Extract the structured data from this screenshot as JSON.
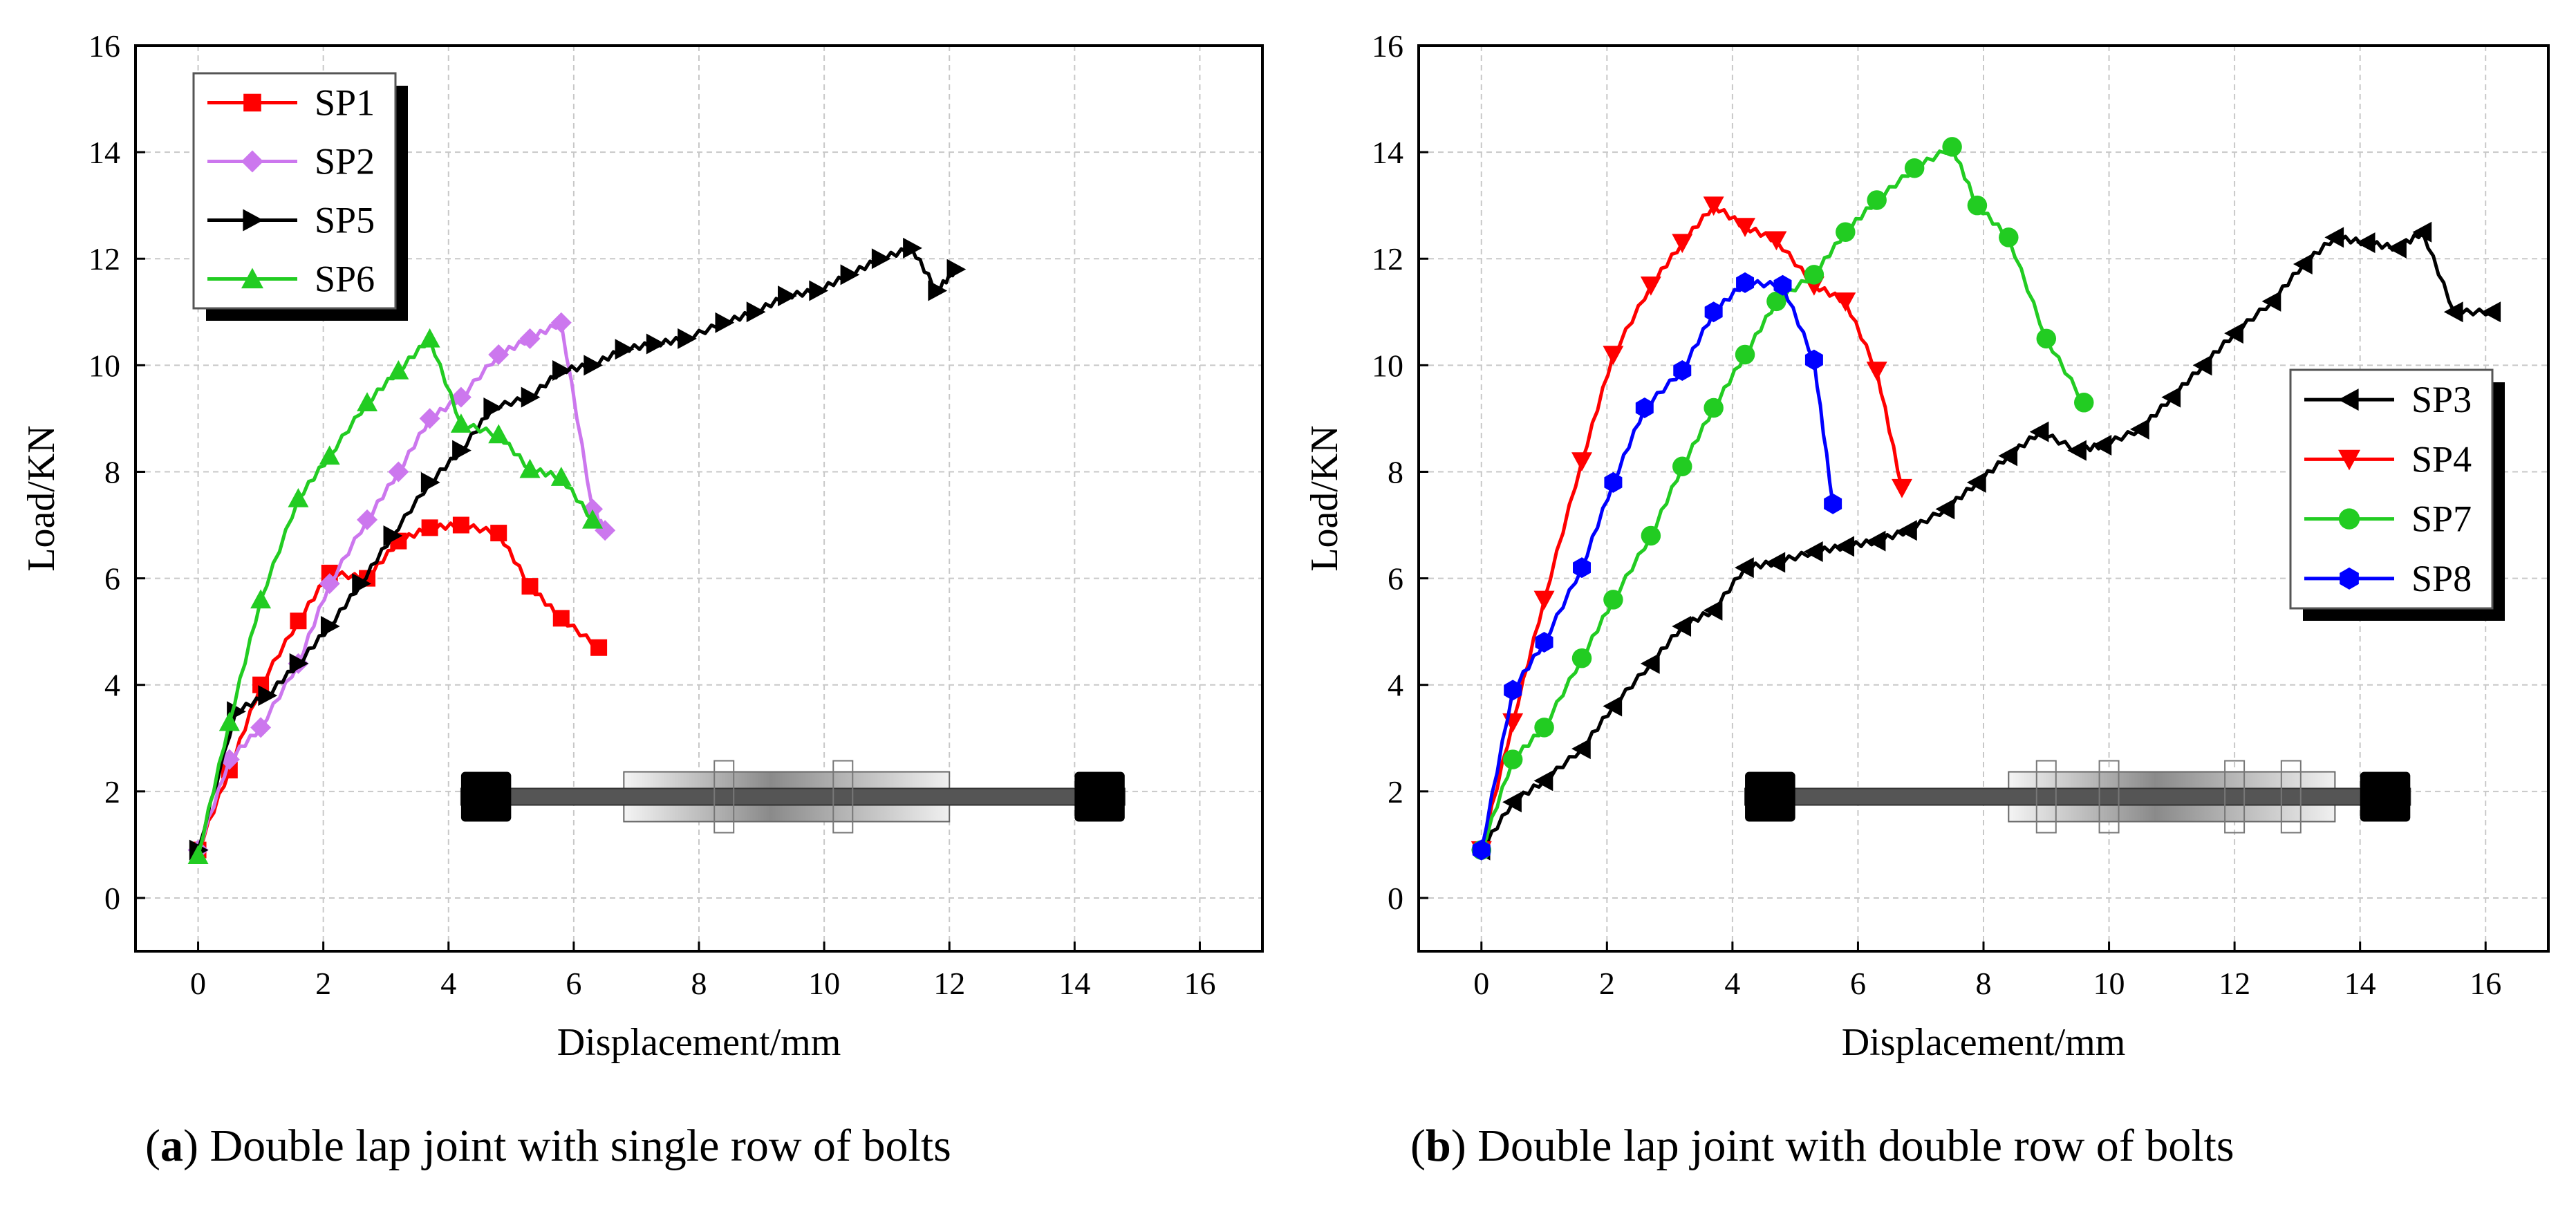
{
  "captions": [
    {
      "letter": "a",
      "text": ") Double lap joint with single row of bolts",
      "open": "("
    },
    {
      "letter": "b",
      "text": ") Double lap joint with double row of bolts",
      "open": "("
    }
  ],
  "chart_data": [
    {
      "type": "line",
      "title": "",
      "xlabel": "Displacement/mm",
      "ylabel": "Load/KN",
      "xlim": [
        -1,
        17
      ],
      "ylim": [
        -1,
        16
      ],
      "xticks": [
        0,
        2,
        4,
        6,
        8,
        10,
        12,
        14,
        16
      ],
      "yticks": [
        0,
        2,
        4,
        6,
        8,
        10,
        12,
        14,
        16
      ],
      "grid": true,
      "legend_position": "top-left",
      "series": [
        {
          "name": "SP1",
          "color": "#ff0000",
          "marker": "square",
          "x": [
            0,
            0.5,
            1.0,
            1.6,
            2.1,
            2.7,
            3.2,
            3.7,
            4.2,
            4.8,
            5.3,
            5.8,
            6.4
          ],
          "y": [
            0.9,
            2.4,
            4.0,
            5.2,
            6.1,
            6.0,
            6.7,
            6.95,
            7.0,
            6.85,
            5.85,
            5.25,
            4.7
          ]
        },
        {
          "name": "SP2",
          "color": "#cc77ee",
          "marker": "diamond",
          "x": [
            0,
            0.5,
            1.0,
            1.6,
            2.1,
            2.7,
            3.2,
            3.7,
            4.2,
            4.8,
            5.3,
            5.8,
            6.3,
            6.5
          ],
          "y": [
            0.9,
            2.6,
            3.2,
            4.4,
            5.9,
            7.1,
            8.0,
            9.0,
            9.4,
            10.2,
            10.5,
            10.8,
            7.3,
            6.9
          ]
        },
        {
          "name": "SP5",
          "color": "#000000",
          "marker": "triangle-right",
          "x": [
            0,
            0.6,
            1.1,
            1.6,
            2.1,
            2.6,
            3.1,
            3.7,
            4.2,
            4.7,
            5.3,
            5.8,
            6.3,
            6.8,
            7.3,
            7.8,
            8.4,
            8.9,
            9.4,
            9.9,
            10.4,
            10.9,
            11.4,
            11.8,
            12.1
          ],
          "y": [
            0.9,
            3.5,
            3.8,
            4.4,
            5.1,
            5.9,
            6.8,
            7.8,
            8.4,
            9.2,
            9.4,
            9.9,
            10.0,
            10.3,
            10.4,
            10.5,
            10.8,
            11.0,
            11.3,
            11.4,
            11.7,
            12.0,
            12.2,
            11.4,
            11.8
          ]
        },
        {
          "name": "SP6",
          "color": "#22cc22",
          "marker": "triangle-up",
          "x": [
            0,
            0.5,
            1.0,
            1.6,
            2.1,
            2.7,
            3.2,
            3.7,
            4.2,
            4.8,
            5.3,
            5.8,
            6.3
          ],
          "y": [
            0.8,
            3.3,
            5.6,
            7.5,
            8.3,
            9.3,
            9.9,
            10.5,
            8.9,
            8.7,
            8.05,
            7.9,
            7.1
          ]
        }
      ]
    },
    {
      "type": "line",
      "title": "",
      "xlabel": "Displacement/mm",
      "ylabel": "Load/KN",
      "xlim": [
        -1,
        17
      ],
      "ylim": [
        -1,
        16
      ],
      "xticks": [
        0,
        2,
        4,
        6,
        8,
        10,
        12,
        14,
        16
      ],
      "yticks": [
        0,
        2,
        4,
        6,
        8,
        10,
        12,
        14,
        16
      ],
      "grid": true,
      "legend_position": "right",
      "series": [
        {
          "name": "SP3",
          "color": "#000000",
          "marker": "triangle-left",
          "x": [
            0,
            0.5,
            1.0,
            1.6,
            2.1,
            2.7,
            3.2,
            3.7,
            4.2,
            4.7,
            5.3,
            5.8,
            6.3,
            6.8,
            7.4,
            7.9,
            8.4,
            8.9,
            9.5,
            9.9,
            10.5,
            11.0,
            11.5,
            12.0,
            12.6,
            13.1,
            13.6,
            14.1,
            14.6,
            15.0,
            15.5,
            16.1
          ],
          "y": [
            0.9,
            1.8,
            2.2,
            2.8,
            3.6,
            4.4,
            5.1,
            5.4,
            6.2,
            6.3,
            6.5,
            6.6,
            6.7,
            6.9,
            7.3,
            7.8,
            8.3,
            8.75,
            8.4,
            8.5,
            8.8,
            9.4,
            10.0,
            10.6,
            11.2,
            11.9,
            12.4,
            12.3,
            12.2,
            12.5,
            11.0,
            11.0
          ]
        },
        {
          "name": "SP4",
          "color": "#ff0000",
          "marker": "triangle-down",
          "x": [
            0,
            0.5,
            1.0,
            1.6,
            2.1,
            2.7,
            3.2,
            3.7,
            4.2,
            4.7,
            5.3,
            5.8,
            6.3,
            6.7
          ],
          "y": [
            0.9,
            3.3,
            5.6,
            8.2,
            10.2,
            11.5,
            12.3,
            13.0,
            12.6,
            12.35,
            11.5,
            11.2,
            9.9,
            7.7
          ]
        },
        {
          "name": "SP7",
          "color": "#22cc22",
          "marker": "circle",
          "x": [
            0,
            0.5,
            1.0,
            1.6,
            2.1,
            2.7,
            3.2,
            3.7,
            4.2,
            4.7,
            5.3,
            5.8,
            6.3,
            6.9,
            7.5,
            7.9,
            8.4,
            9.0,
            9.6
          ],
          "y": [
            0.9,
            2.6,
            3.2,
            4.5,
            5.6,
            6.8,
            8.1,
            9.2,
            10.2,
            11.2,
            11.7,
            12.5,
            13.1,
            13.7,
            14.1,
            13.0,
            12.4,
            10.5,
            9.3
          ]
        },
        {
          "name": "SP8",
          "color": "#0000ff",
          "marker": "hexagon",
          "x": [
            0,
            0.5,
            1.0,
            1.6,
            2.1,
            2.6,
            3.2,
            3.7,
            4.2,
            4.8,
            5.3,
            5.6
          ],
          "y": [
            0.9,
            3.9,
            4.8,
            6.2,
            7.8,
            9.2,
            9.9,
            11.0,
            11.55,
            11.5,
            10.1,
            7.4
          ]
        }
      ]
    }
  ]
}
